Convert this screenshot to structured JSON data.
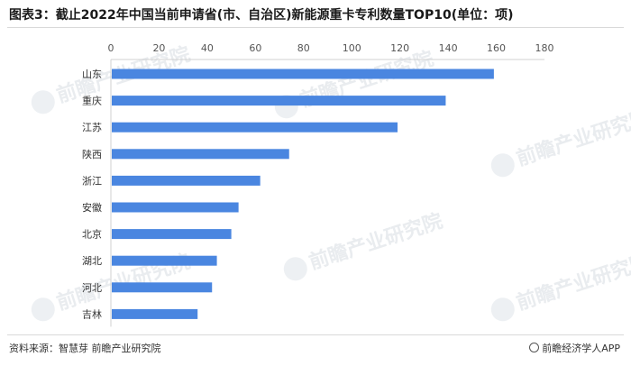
{
  "title": "图表3：截止2022年中国当前申请省(市、自治区)新能源重卡专利数量TOP10(单位：项)",
  "watermark": "前瞻产业研究院",
  "footer": {
    "source": "资料来源：智慧芽 前瞻产业研究院",
    "brand": "前瞻经济学人APP"
  },
  "chart_data": {
    "type": "bar",
    "orientation": "horizontal",
    "title": "图表3：截止2022年中国当前申请省(市、自治区)新能源重卡专利数量TOP10(单位：项)",
    "categories": [
      "山东",
      "重庆",
      "江苏",
      "陕西",
      "浙江",
      "安徽",
      "北京",
      "湖北",
      "河北",
      "吉林"
    ],
    "values": [
      159,
      139,
      119,
      74,
      62,
      53,
      50,
      44,
      42,
      36
    ],
    "xlim": [
      0,
      180
    ],
    "ticks": [
      0,
      20,
      40,
      60,
      80,
      100,
      120,
      140,
      160,
      180
    ],
    "axis_position": "top",
    "grid": false,
    "legend": "none",
    "bar_color": "#4a86e0"
  }
}
